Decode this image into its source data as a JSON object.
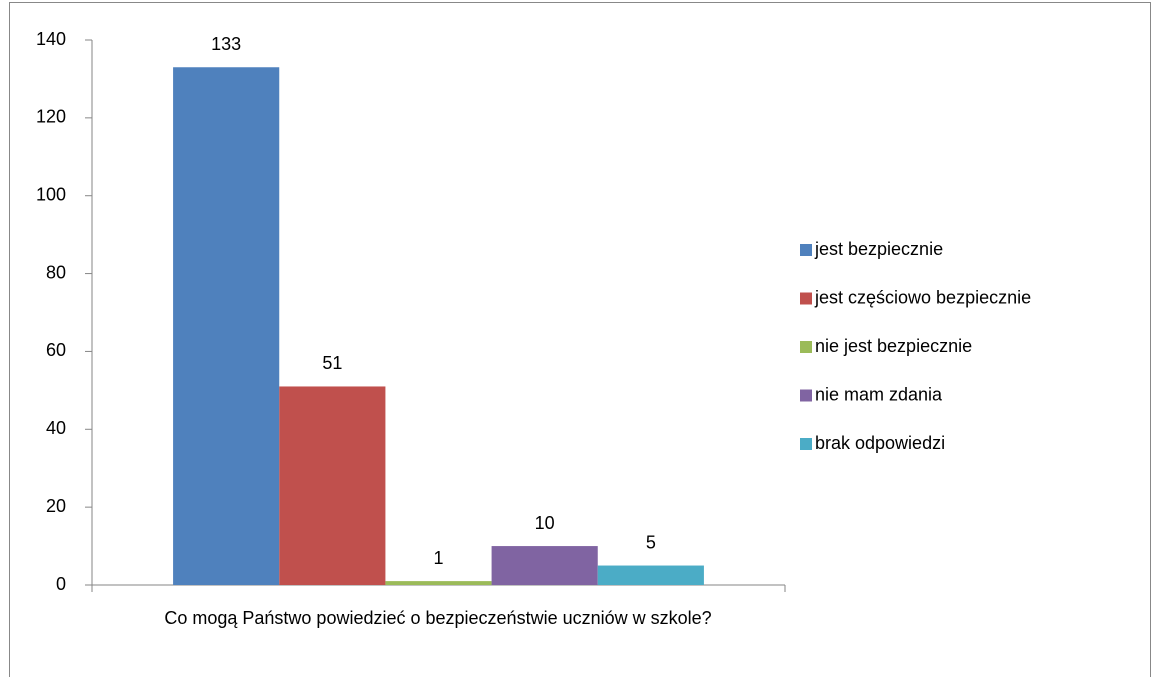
{
  "chart_data": {
    "type": "bar",
    "categories": [
      "Co mogą Państwo powiedzieć o bezpieczeństwie uczniów w szkole?"
    ],
    "series": [
      {
        "name": "jest bezpiecznie",
        "color": "#4f81bd",
        "values": [
          133
        ]
      },
      {
        "name": "jest częściowo bezpiecznie",
        "color": "#c0504d",
        "values": [
          51
        ]
      },
      {
        "name": "nie jest bezpiecznie",
        "color": "#9bbb59",
        "values": [
          1
        ]
      },
      {
        "name": "nie mam zdania",
        "color": "#8064a2",
        "values": [
          10
        ]
      },
      {
        "name": "brak odpowiedzi",
        "color": "#4bacc6",
        "values": [
          5
        ]
      }
    ],
    "ylim": [
      0,
      140
    ],
    "yticks": [
      0,
      20,
      40,
      60,
      80,
      100,
      120,
      140
    ],
    "grid": false,
    "legend": "right"
  }
}
